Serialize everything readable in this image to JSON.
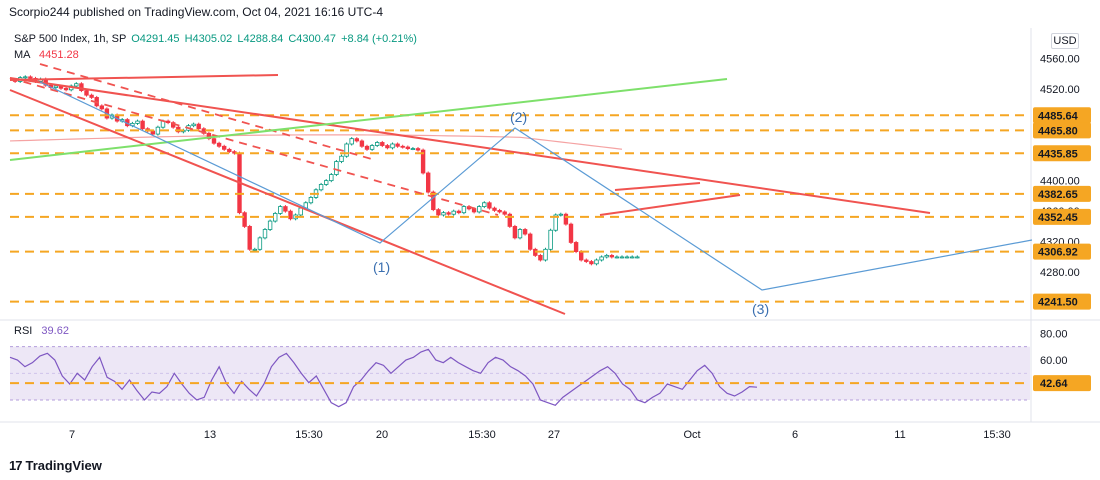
{
  "header": {
    "published_text": "Scorpio244 published on TradingView.com, Oct 04, 2021 16:16 UTC-4"
  },
  "legend": {
    "symbol": "S&P 500 Index, 1h, SP",
    "open": "O4291.45",
    "high": "H4305.02",
    "low": "L4288.84",
    "close": "C4300.47",
    "change": "+8.84 (+0.21%)",
    "ma_label": "MA",
    "ma_value": "4451.28",
    "rsi_label": "RSI",
    "rsi_value": "39.62"
  },
  "currency": "USD",
  "footer": {
    "brand": "TradingView",
    "brand_mark": "17"
  },
  "colors": {
    "up": "#089981",
    "down": "#f23645",
    "trendline_red": "#f05350",
    "trendline_green": "#7ee06b",
    "dashed_orange": "#f5a623",
    "wave_blue": "#5b9bd5",
    "rsi_line": "#7e57c2",
    "rsi_band": "#ede7f6"
  },
  "chart_data": [
    {
      "type": "line",
      "title": "S&P 500 Index, 1h, SP",
      "y_axis": {
        "ticks": [
          4280,
          4320,
          4360,
          4400,
          4440,
          4480,
          4520,
          4560
        ],
        "range": [
          4220,
          4600
        ]
      },
      "x_axis": {
        "ticks": [
          "7",
          "13",
          "15:30",
          "20",
          "15:30",
          "27",
          "Oct",
          "6",
          "11",
          "15:30"
        ]
      },
      "series": [
        {
          "name": "S&P 500 Index",
          "x": [
            0,
            2,
            4,
            6,
            8,
            10,
            12,
            14,
            16,
            18,
            20,
            22,
            24,
            26,
            28,
            30,
            32,
            34,
            36,
            38,
            40,
            42,
            44,
            46,
            48,
            50,
            52,
            54,
            56,
            58,
            60,
            62,
            64,
            66,
            68,
            70,
            72,
            74,
            76,
            78,
            80,
            82,
            84,
            86,
            88,
            90,
            92,
            94,
            96,
            98,
            100,
            102,
            104,
            106,
            108,
            110,
            112,
            114,
            116,
            118,
            120,
            122,
            124,
            126,
            128,
            130,
            132,
            134,
            136,
            138,
            140,
            142,
            144,
            146,
            148,
            150,
            152,
            154,
            156,
            158,
            160,
            162,
            164,
            166,
            168,
            170,
            172,
            174,
            176,
            178,
            180,
            182,
            184,
            186,
            188,
            190,
            192,
            194,
            196,
            198,
            200,
            202,
            204,
            206,
            208,
            210,
            212,
            214,
            216,
            218,
            220,
            222,
            224,
            226,
            228,
            230,
            232,
            234,
            236,
            238,
            240,
            242,
            244,
            246
          ],
          "values": [
            4532,
            4530,
            4535,
            4536,
            4534,
            4530,
            4533,
            4525,
            4522,
            4524,
            4521,
            4519,
            4524,
            4527,
            4518,
            4512,
            4509,
            4498,
            4494,
            4482,
            4486,
            4478,
            4480,
            4472,
            4475,
            4478,
            4468,
            4465,
            4461,
            4470,
            4478,
            4476,
            4470,
            4464,
            4466,
            4472,
            4474,
            4468,
            4462,
            4455,
            4449,
            4445,
            4441,
            4438,
            4436,
            4358,
            4340,
            4310,
            4310,
            4325,
            4336,
            4347,
            4357,
            4366,
            4360,
            4350,
            4355,
            4364,
            4371,
            4378,
            4388,
            4395,
            4400,
            4408,
            4425,
            4432,
            4448,
            4455,
            4452,
            4445,
            4441,
            4446,
            4450,
            4446,
            4443,
            4448,
            4445,
            4444,
            4442,
            4442,
            4440,
            4410,
            4385,
            4362,
            4355,
            4358,
            4356,
            4360,
            4358,
            4366,
            4363,
            4359,
            4366,
            4371,
            4364,
            4361,
            4359,
            4356,
            4340,
            4325,
            4336,
            4330,
            4310,
            4302,
            4296,
            4310,
            4335,
            4355,
            4356,
            4343,
            4319,
            4307,
            4296,
            4294,
            4291,
            4296,
            4300,
            4302,
            4300,
            4300,
            4300,
            4300,
            4300,
            4300
          ]
        },
        {
          "name": "MA",
          "values_note": "MA 4451.28",
          "value": 4451.28
        }
      ],
      "price_labels": [
        4485.64,
        4465.8,
        4435.85,
        4382.65,
        4352.45,
        4306.92,
        4241.5
      ],
      "annotations": [
        "(1)",
        "(2)",
        "(3)"
      ],
      "grid": false
    },
    {
      "type": "line",
      "title": "RSI 39.62",
      "y_axis": {
        "ticks": [
          60.0,
          80.0
        ],
        "range": [
          15,
          90
        ]
      },
      "series": [
        {
          "name": "RSI",
          "values": [
            62,
            60,
            55,
            58,
            63,
            65,
            60,
            48,
            42,
            50,
            45,
            55,
            62,
            47,
            44,
            38,
            45,
            37,
            30,
            36,
            35,
            40,
            50,
            42,
            35,
            30,
            32,
            45,
            55,
            42,
            35,
            44,
            38,
            33,
            42,
            55,
            62,
            65,
            58,
            50,
            43,
            48,
            38,
            28,
            25,
            28,
            40,
            45,
            52,
            58,
            56,
            50,
            55,
            60,
            62,
            66,
            68,
            60,
            58,
            62,
            58,
            55,
            52,
            50,
            58,
            62,
            60,
            55,
            52,
            48,
            42,
            30,
            28,
            26,
            32,
            36,
            40,
            44,
            48,
            52,
            55,
            50,
            42,
            38,
            30,
            28,
            32,
            35,
            42,
            40,
            38,
            45,
            52,
            56,
            50,
            40,
            35,
            33,
            36,
            40,
            39.62
          ]
        }
      ],
      "price_labels": [
        42.64
      ],
      "grid": false
    }
  ]
}
